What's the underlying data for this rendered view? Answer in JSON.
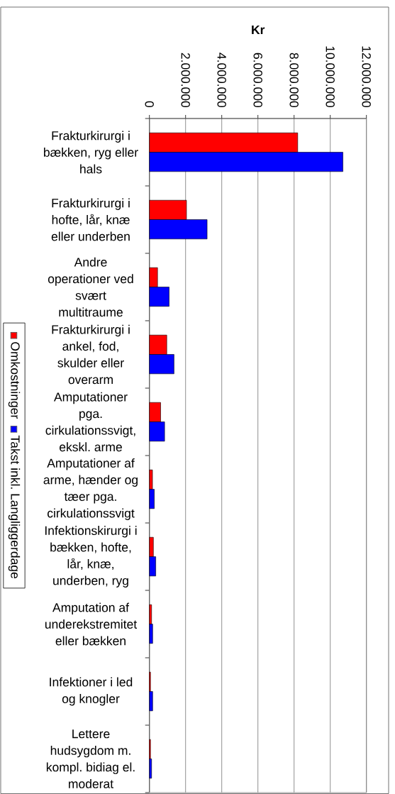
{
  "chart_data": {
    "type": "bar",
    "orientation": "horizontal",
    "xlabel": "Kr",
    "categories": [
      "Frakturkirurgi i bækken, ryg eller hals",
      "Frakturkirurgi i hofte, lår, knæ eller underben",
      "Andre operationer ved svært multitraume",
      "Frakturkirurgi i ankel, fod, skulder eller overarm",
      "Amputationer pga. cirkulationssvigt, ekskl. arme",
      "Amputationer af arme, hænder og tæer pga. cirkulationssvigt",
      "Infektionskirurgi i bækken, hofte, lår, knæ, underben, ryg",
      "Amputation af underekstremitet eller bækken",
      "Infektioner i led og knogler",
      "Lettere hudsygdom m. kompl. bidiag el. moderat"
    ],
    "series": [
      {
        "name": "Omkostninger",
        "color": "#ff0000",
        "values": [
          8200000,
          2050000,
          450000,
          960000,
          620000,
          170000,
          220000,
          120000,
          60000,
          60000
        ]
      },
      {
        "name": "Takst inkl. Langliggerdage",
        "color": "#0000ff",
        "values": [
          10700000,
          3190000,
          1090000,
          1360000,
          840000,
          270000,
          350000,
          180000,
          180000,
          120000
        ]
      }
    ],
    "xlim": [
      0,
      12000000
    ],
    "xticks": [
      0,
      {
        "value": 2000000,
        "label": "2.000.000"
      },
      {
        "value": 4000000,
        "label": "4.000.000"
      },
      {
        "value": 6000000,
        "label": "6.000.000"
      },
      {
        "value": 8000000,
        "label": "8.000.000"
      },
      {
        "value": 10000000,
        "label": "10.000.000"
      },
      {
        "value": 12000000,
        "label": "12.000.000"
      }
    ],
    "grid": "x",
    "legend": "left"
  }
}
